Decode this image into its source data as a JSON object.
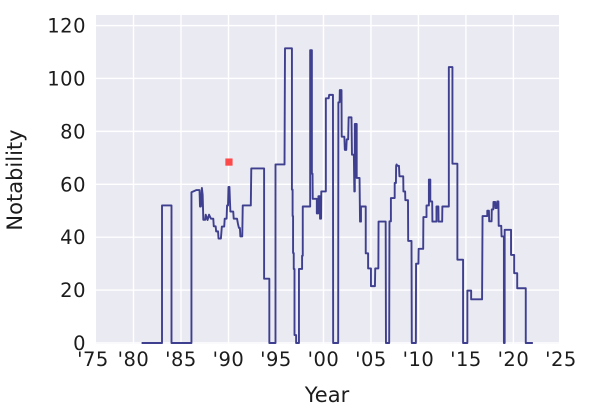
{
  "chart_data": {
    "type": "line",
    "title": "",
    "xlabel": "Year",
    "ylabel": "Notability",
    "x_ticks": [
      {
        "year": 1975,
        "label": "'75"
      },
      {
        "year": 1980,
        "label": "'80"
      },
      {
        "year": 1985,
        "label": "'85"
      },
      {
        "year": 1990,
        "label": "'90"
      },
      {
        "year": 1995,
        "label": "'95"
      },
      {
        "year": 2000,
        "label": "'00"
      },
      {
        "year": 2005,
        "label": "'05"
      },
      {
        "year": 2010,
        "label": "'10"
      },
      {
        "year": 2015,
        "label": "'15"
      },
      {
        "year": 2020,
        "label": "'20"
      },
      {
        "year": 2025,
        "label": "'25"
      }
    ],
    "y_ticks": [
      0,
      20,
      40,
      60,
      80,
      100,
      120
    ],
    "xlim": [
      1976.05,
      2024.8
    ],
    "ylim": [
      0,
      124
    ],
    "grid": true,
    "style": "seaborn-darkgrid",
    "plot_bg_color": "#eaeaf2",
    "grid_color": "#ffffff",
    "line_color": "#3f3f8f",
    "tick_color": "#1c1c1c",
    "marker": {
      "x": 1990.05,
      "y": 68.4,
      "color": "#fc4949",
      "shape": "square",
      "size": 7.2
    },
    "series": [
      {
        "name": "notability",
        "points": [
          [
            1980.85,
            0
          ],
          [
            1983.0,
            0
          ],
          [
            1983.0,
            52
          ],
          [
            1984.0,
            52
          ],
          [
            1984.0,
            0
          ],
          [
            1986.1,
            0
          ],
          [
            1986.1,
            57
          ],
          [
            1986.6,
            57.8
          ],
          [
            1986.95,
            57.8
          ],
          [
            1987.0,
            51.6
          ],
          [
            1987.1,
            51.6
          ],
          [
            1987.15,
            56
          ],
          [
            1987.2,
            58.6
          ],
          [
            1987.28,
            56
          ],
          [
            1987.35,
            46.6
          ],
          [
            1987.55,
            46.6
          ],
          [
            1987.6,
            48.5
          ],
          [
            1987.8,
            46.5
          ],
          [
            1987.95,
            48.5
          ],
          [
            1988.15,
            47
          ],
          [
            1988.4,
            47
          ],
          [
            1988.45,
            44.1
          ],
          [
            1988.65,
            44.1
          ],
          [
            1988.7,
            42.2
          ],
          [
            1988.9,
            42.2
          ],
          [
            1988.95,
            39.5
          ],
          [
            1989.2,
            39.5
          ],
          [
            1989.3,
            44
          ],
          [
            1989.55,
            44
          ],
          [
            1989.6,
            47
          ],
          [
            1989.8,
            47
          ],
          [
            1989.85,
            52
          ],
          [
            1989.95,
            52
          ],
          [
            1990.0,
            59
          ],
          [
            1990.1,
            59
          ],
          [
            1990.15,
            54
          ],
          [
            1990.2,
            49.7
          ],
          [
            1990.5,
            49.7
          ],
          [
            1990.55,
            47
          ],
          [
            1990.9,
            47
          ],
          [
            1991.0,
            45
          ],
          [
            1991.1,
            43.5
          ],
          [
            1991.2,
            43.5
          ],
          [
            1991.25,
            40.3
          ],
          [
            1991.45,
            40.3
          ],
          [
            1991.5,
            52
          ],
          [
            1992.35,
            52
          ],
          [
            1992.4,
            66
          ],
          [
            1993.75,
            66
          ],
          [
            1993.75,
            24.3
          ],
          [
            1994.3,
            24.3
          ],
          [
            1994.3,
            0
          ],
          [
            1994.95,
            0
          ],
          [
            1994.95,
            67.5
          ],
          [
            1995.9,
            67.5
          ],
          [
            1995.95,
            111.4
          ],
          [
            1996.68,
            111.4
          ],
          [
            1996.68,
            58
          ],
          [
            1996.75,
            58
          ],
          [
            1996.75,
            48
          ],
          [
            1996.8,
            48
          ],
          [
            1996.8,
            34
          ],
          [
            1996.87,
            34
          ],
          [
            1996.87,
            28
          ],
          [
            1996.95,
            28
          ],
          [
            1996.95,
            3
          ],
          [
            1997.12,
            3
          ],
          [
            1997.12,
            0
          ],
          [
            1997.42,
            0
          ],
          [
            1997.42,
            28
          ],
          [
            1997.75,
            28
          ],
          [
            1997.75,
            33
          ],
          [
            1997.82,
            33
          ],
          [
            1997.82,
            51.6
          ],
          [
            1998.6,
            51.6
          ],
          [
            1998.6,
            110.7
          ],
          [
            1998.78,
            110.7
          ],
          [
            1998.78,
            64
          ],
          [
            1998.85,
            64
          ],
          [
            1998.87,
            54.5
          ],
          [
            1999.3,
            54.5
          ],
          [
            1999.3,
            49
          ],
          [
            1999.45,
            49
          ],
          [
            1999.47,
            55.5
          ],
          [
            1999.62,
            55.5
          ],
          [
            1999.64,
            47
          ],
          [
            1999.75,
            47
          ],
          [
            1999.77,
            57.3
          ],
          [
            2000.25,
            57.3
          ],
          [
            2000.25,
            92.5
          ],
          [
            2000.55,
            92.5
          ],
          [
            2000.6,
            93.8
          ],
          [
            2001.0,
            93.8
          ],
          [
            2001.02,
            0
          ],
          [
            2001.55,
            0
          ],
          [
            2001.57,
            91
          ],
          [
            2001.7,
            91
          ],
          [
            2001.72,
            95.6
          ],
          [
            2001.9,
            95.6
          ],
          [
            2001.92,
            78
          ],
          [
            2002.2,
            78
          ],
          [
            2002.25,
            73
          ],
          [
            2002.4,
            73
          ],
          [
            2002.45,
            77
          ],
          [
            2002.6,
            77
          ],
          [
            2002.65,
            85.3
          ],
          [
            2002.95,
            85.3
          ],
          [
            2003.0,
            71.2
          ],
          [
            2003.2,
            71.2
          ],
          [
            2003.25,
            57.3
          ],
          [
            2003.3,
            57.3
          ],
          [
            2003.3,
            82.8
          ],
          [
            2003.5,
            82.8
          ],
          [
            2003.5,
            62.4
          ],
          [
            2003.8,
            62.4
          ],
          [
            2003.85,
            45.9
          ],
          [
            2003.95,
            45.9
          ],
          [
            2003.95,
            51.6
          ],
          [
            2004.45,
            51.6
          ],
          [
            2004.45,
            33.9
          ],
          [
            2004.7,
            33.9
          ],
          [
            2004.7,
            28.2
          ],
          [
            2005.0,
            28.2
          ],
          [
            2005.0,
            21.5
          ],
          [
            2005.42,
            21.5
          ],
          [
            2005.45,
            28.2
          ],
          [
            2005.78,
            28.2
          ],
          [
            2005.8,
            45.9
          ],
          [
            2006.55,
            45.9
          ],
          [
            2006.58,
            0
          ],
          [
            2006.92,
            0
          ],
          [
            2006.95,
            46
          ],
          [
            2007.1,
            46
          ],
          [
            2007.1,
            54.8
          ],
          [
            2007.5,
            54.8
          ],
          [
            2007.5,
            60.5
          ],
          [
            2007.63,
            60.5
          ],
          [
            2007.65,
            67
          ],
          [
            2007.7,
            67.5
          ],
          [
            2007.78,
            67
          ],
          [
            2007.95,
            67
          ],
          [
            2008.0,
            63
          ],
          [
            2008.4,
            63
          ],
          [
            2008.42,
            57.3
          ],
          [
            2008.6,
            57.3
          ],
          [
            2008.62,
            54
          ],
          [
            2008.9,
            54
          ],
          [
            2008.92,
            38.6
          ],
          [
            2009.27,
            38.6
          ],
          [
            2009.3,
            0
          ],
          [
            2009.73,
            0
          ],
          [
            2009.75,
            30
          ],
          [
            2010.0,
            30
          ],
          [
            2010.02,
            35.6
          ],
          [
            2010.5,
            35.6
          ],
          [
            2010.52,
            47.6
          ],
          [
            2010.85,
            47.6
          ],
          [
            2010.85,
            52
          ],
          [
            2011.1,
            52
          ],
          [
            2011.1,
            61.8
          ],
          [
            2011.25,
            61.8
          ],
          [
            2011.25,
            53.5
          ],
          [
            2011.45,
            53.5
          ],
          [
            2011.47,
            45.9
          ],
          [
            2011.9,
            45.9
          ],
          [
            2011.9,
            51.6
          ],
          [
            2012.1,
            51.6
          ],
          [
            2012.12,
            45.9
          ],
          [
            2012.5,
            45.9
          ],
          [
            2012.52,
            51.6
          ],
          [
            2013.2,
            51.6
          ],
          [
            2013.2,
            104.3
          ],
          [
            2013.58,
            104.3
          ],
          [
            2013.58,
            67.8
          ],
          [
            2014.1,
            67.8
          ],
          [
            2014.1,
            31.5
          ],
          [
            2014.7,
            31.5
          ],
          [
            2014.7,
            0
          ],
          [
            2015.15,
            0
          ],
          [
            2015.15,
            19.8
          ],
          [
            2015.55,
            19.8
          ],
          [
            2015.55,
            16.5
          ],
          [
            2016.7,
            16.5
          ],
          [
            2016.75,
            48
          ],
          [
            2017.25,
            48
          ],
          [
            2017.25,
            50
          ],
          [
            2017.42,
            50
          ],
          [
            2017.45,
            46
          ],
          [
            2017.7,
            46
          ],
          [
            2017.72,
            50.5
          ],
          [
            2017.88,
            50.5
          ],
          [
            2017.9,
            53.3
          ],
          [
            2018.08,
            53.3
          ],
          [
            2018.1,
            51
          ],
          [
            2018.25,
            51
          ],
          [
            2018.3,
            53.5
          ],
          [
            2018.42,
            53.5
          ],
          [
            2018.45,
            44.3
          ],
          [
            2018.72,
            44.3
          ],
          [
            2018.75,
            40.3
          ],
          [
            2019.0,
            40.3
          ],
          [
            2019.0,
            0
          ],
          [
            2019.08,
            0
          ],
          [
            2019.08,
            42.8
          ],
          [
            2019.75,
            42.8
          ],
          [
            2019.75,
            33.3
          ],
          [
            2020.08,
            33.3
          ],
          [
            2020.08,
            26.4
          ],
          [
            2020.4,
            26.4
          ],
          [
            2020.4,
            20.7
          ],
          [
            2021.3,
            20.7
          ],
          [
            2021.3,
            0
          ],
          [
            2022.05,
            0
          ]
        ]
      }
    ]
  }
}
